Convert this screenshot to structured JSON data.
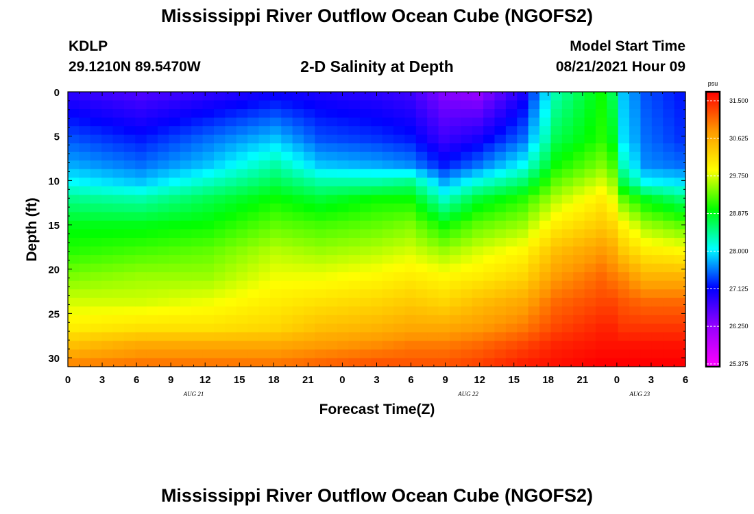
{
  "header": {
    "title": "Mississippi River Outflow Ocean Cube (NGOFS2)",
    "station_id": "KDLP",
    "station_coords": "29.1210N  89.5470W",
    "subtitle": "2-D Salinity at Depth",
    "start_label": "Model Start Time",
    "start_value": "08/21/2021 Hour 09"
  },
  "footer": {
    "title": "Mississippi River Outflow Ocean Cube (NGOFS2)"
  },
  "chart_data": {
    "type": "heatmap",
    "title": "2-D Salinity at Depth",
    "xlabel": "Forecast Time(Z)",
    "ylabel": "Depth (ft)",
    "x_range_hours": [
      0,
      54
    ],
    "x_ticks": [
      "0",
      "3",
      "6",
      "9",
      "12",
      "15",
      "18",
      "21",
      "0",
      "3",
      "6",
      "9",
      "12",
      "15",
      "18",
      "21",
      "0",
      "3",
      "6"
    ],
    "date_labels": [
      {
        "label": "AUG 21",
        "hour": 11
      },
      {
        "label": "AUG 22",
        "hour": 35
      },
      {
        "label": "AUG 23",
        "hour": 50
      }
    ],
    "y_range_ft": [
      0,
      31
    ],
    "y_ticks": [
      0,
      5,
      10,
      15,
      20,
      25,
      30
    ],
    "colorbar": {
      "unit": "psu",
      "min": 25.375,
      "max": 31.5,
      "ticks": [
        "31.500",
        "30.625",
        "29.750",
        "28.875",
        "28.000",
        "27.125",
        "26.250",
        "25.375"
      ],
      "colors": [
        "#ff00ff",
        "#9900ff",
        "#0000ff",
        "#00ffff",
        "#00ff00",
        "#ffff00",
        "#ff9900",
        "#ff0000"
      ]
    },
    "profile_depths_ft": [
      0,
      5,
      8,
      10,
      12,
      15,
      18,
      21,
      24,
      27,
      29,
      31
    ],
    "profiles": [
      {
        "hour": 0,
        "salinity": [
          26.9,
          27.4,
          27.7,
          28.0,
          28.4,
          28.8,
          29.0,
          29.3,
          29.6,
          29.9,
          30.3,
          30.7
        ]
      },
      {
        "hour": 6,
        "salinity": [
          26.7,
          27.2,
          27.5,
          27.8,
          28.3,
          28.8,
          29.1,
          29.4,
          29.6,
          30.0,
          30.5,
          30.8
        ]
      },
      {
        "hour": 12,
        "salinity": [
          26.9,
          27.5,
          27.8,
          28.2,
          28.6,
          28.9,
          29.2,
          29.4,
          29.7,
          30.0,
          30.5,
          30.8
        ]
      },
      {
        "hour": 18,
        "salinity": [
          27.1,
          27.8,
          28.3,
          28.6,
          28.9,
          29.2,
          29.5,
          29.7,
          29.9,
          30.1,
          30.5,
          30.8
        ]
      },
      {
        "hour": 22,
        "salinity": [
          27.0,
          27.4,
          27.8,
          28.3,
          28.7,
          29.1,
          29.4,
          29.7,
          30.0,
          30.3,
          30.6,
          30.9
        ]
      },
      {
        "hour": 27,
        "salinity": [
          26.9,
          27.3,
          27.7,
          28.3,
          28.9,
          29.2,
          29.5,
          29.8,
          30.1,
          30.4,
          30.7,
          31.0
        ]
      },
      {
        "hour": 30,
        "salinity": [
          26.8,
          27.2,
          27.6,
          28.4,
          28.9,
          29.3,
          29.6,
          29.9,
          30.2,
          30.5,
          30.8,
          31.0
        ]
      },
      {
        "hour": 33,
        "salinity": [
          26.4,
          26.8,
          27.2,
          27.7,
          28.2,
          28.9,
          29.4,
          29.8,
          30.1,
          30.5,
          30.8,
          31.0
        ]
      },
      {
        "hour": 36,
        "salinity": [
          26.3,
          27.0,
          27.5,
          28.1,
          28.7,
          29.2,
          29.6,
          29.9,
          30.3,
          30.6,
          30.9,
          31.1
        ]
      },
      {
        "hour": 40,
        "salinity": [
          27.0,
          27.5,
          28.0,
          28.5,
          29.0,
          29.4,
          29.8,
          30.1,
          30.5,
          30.8,
          31.1,
          31.3
        ]
      },
      {
        "hour": 43,
        "salinity": [
          28.3,
          28.6,
          28.9,
          29.2,
          29.5,
          29.9,
          30.3,
          30.6,
          30.9,
          31.1,
          31.3,
          31.4
        ]
      },
      {
        "hour": 47,
        "salinity": [
          28.9,
          29.0,
          29.3,
          29.6,
          29.9,
          30.2,
          30.6,
          30.9,
          31.1,
          31.3,
          31.4,
          31.5
        ]
      },
      {
        "hour": 48,
        "salinity": [
          28.6,
          28.8,
          29.1,
          29.4,
          29.7,
          30.1,
          30.5,
          30.8,
          31.1,
          31.3,
          31.4,
          31.5
        ]
      },
      {
        "hour": 49,
        "salinity": [
          27.8,
          27.9,
          28.2,
          28.6,
          29.2,
          29.8,
          30.2,
          30.7,
          31.0,
          31.2,
          31.4,
          31.5
        ]
      },
      {
        "hour": 51,
        "salinity": [
          27.4,
          27.5,
          27.6,
          28.0,
          28.8,
          29.4,
          29.9,
          30.4,
          30.9,
          31.2,
          31.4,
          31.5
        ]
      },
      {
        "hour": 54,
        "salinity": [
          27.2,
          27.3,
          27.5,
          27.9,
          28.5,
          29.2,
          29.8,
          30.4,
          30.9,
          31.2,
          31.4,
          31.5
        ]
      }
    ]
  }
}
